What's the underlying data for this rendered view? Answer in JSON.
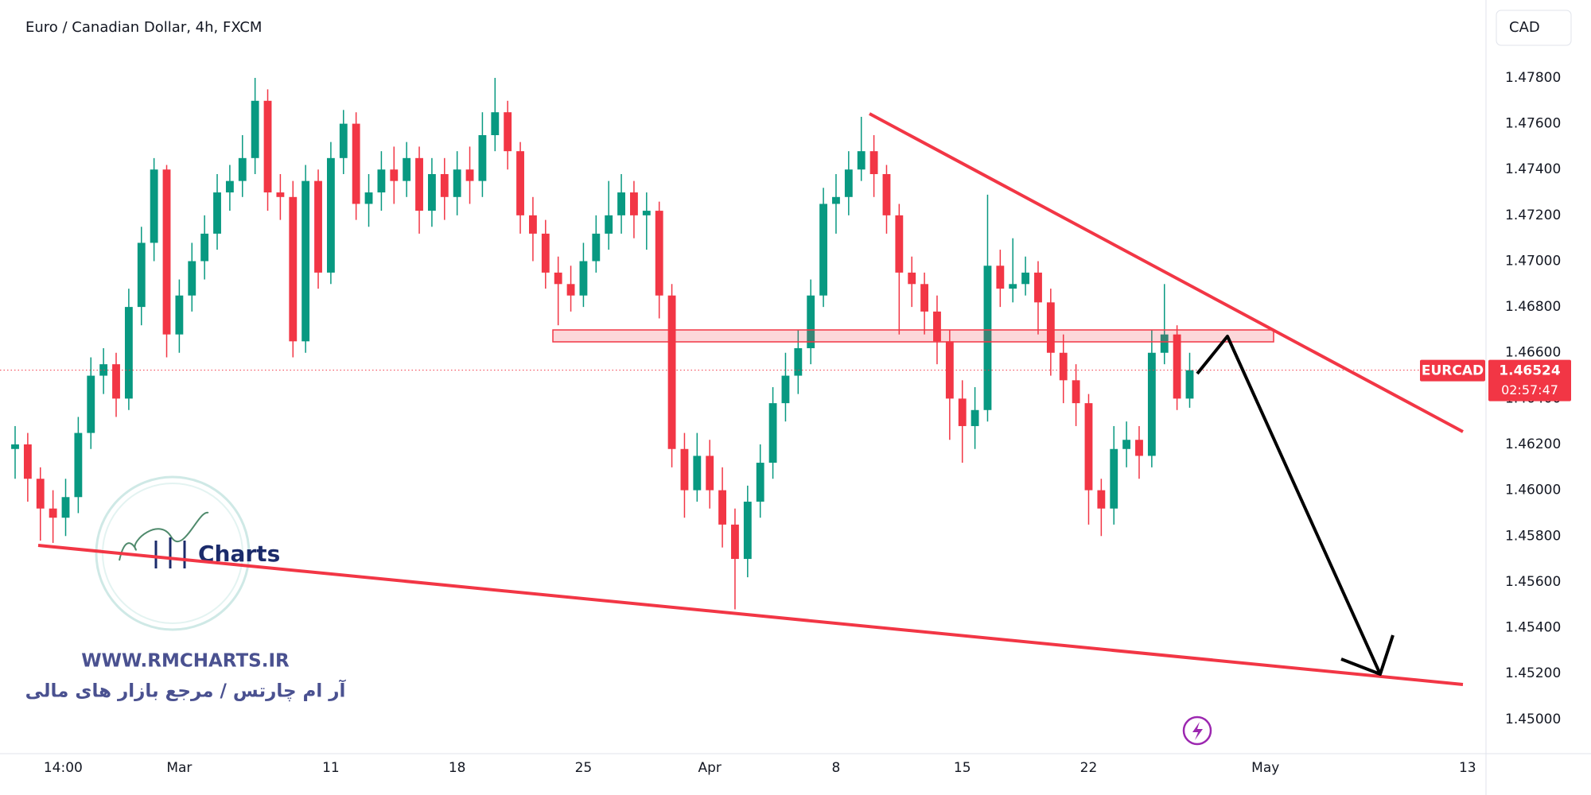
{
  "chart_data": {
    "type": "candlestick",
    "title": "Euro / Canadian Dollar, 4h, FXCM",
    "currency": "CAD",
    "symbol": "EURCAD",
    "last_price": 1.46524,
    "countdown": "02:57:47",
    "up_color": "#089981",
    "down_color": "#f23645",
    "grid": false,
    "xlim": [
      -2.5,
      55.7
    ],
    "ylim": [
      1.4485,
      1.4814
    ],
    "xticks": [
      {
        "value": -0.6,
        "label": "14:00"
      },
      {
        "value": 4,
        "label": "Mar"
      },
      {
        "value": 10,
        "label": "11"
      },
      {
        "value": 15,
        "label": "18"
      },
      {
        "value": 20,
        "label": "25"
      },
      {
        "value": 25,
        "label": "Apr"
      },
      {
        "value": 30,
        "label": "8"
      },
      {
        "value": 35,
        "label": "15"
      },
      {
        "value": 40,
        "label": "22"
      },
      {
        "value": 47,
        "label": "May"
      },
      {
        "value": 55,
        "label": "13"
      }
    ],
    "yticks": [
      {
        "value": 1.45,
        "label": "1.45000"
      },
      {
        "value": 1.452,
        "label": "1.45200"
      },
      {
        "value": 1.454,
        "label": "1.45400"
      },
      {
        "value": 1.456,
        "label": "1.45600"
      },
      {
        "value": 1.458,
        "label": "1.45800"
      },
      {
        "value": 1.46,
        "label": "1.46000"
      },
      {
        "value": 1.462,
        "label": "1.46200"
      },
      {
        "value": 1.464,
        "label": "1.46400"
      },
      {
        "value": 1.466,
        "label": "1.46600"
      },
      {
        "value": 1.468,
        "label": "1.46800"
      },
      {
        "value": 1.47,
        "label": "1.47000"
      },
      {
        "value": 1.472,
        "label": "1.47200"
      },
      {
        "value": 1.474,
        "label": "1.47400"
      },
      {
        "value": 1.476,
        "label": "1.47600"
      },
      {
        "value": 1.478,
        "label": "1.47800"
      }
    ],
    "x": [
      -2.5,
      -2,
      -1.5,
      -1,
      -0.5,
      0,
      0.5,
      1,
      1.5,
      2,
      2.5,
      3,
      3.5,
      4,
      4.5,
      5,
      5.5,
      6,
      6.5,
      7,
      7.5,
      8,
      8.5,
      9,
      9.5,
      10,
      10.5,
      11,
      11.5,
      12,
      12.5,
      13,
      13.5,
      14,
      14.5,
      15,
      15.5,
      16,
      16.5,
      17,
      17.5,
      18,
      18.5,
      19,
      19.5,
      20,
      20.5,
      21,
      21.5,
      22,
      22.5,
      23,
      23.5,
      24,
      24.5,
      25,
      25.5,
      26,
      26.5,
      27,
      27.5,
      28,
      28.5,
      29,
      29.5,
      30,
      30.5,
      31,
      31.5,
      32,
      32.5,
      33,
      33.5,
      34,
      34.5,
      35,
      35.5,
      36,
      36.5,
      37,
      37.5,
      38,
      38.5,
      39,
      39.5,
      40,
      40.5,
      41,
      41.5,
      42,
      42.5,
      43,
      43.5,
      44
    ],
    "open": [
      1.4618,
      1.462,
      1.4605,
      1.4592,
      1.4588,
      1.4597,
      1.4625,
      1.465,
      1.4655,
      1.464,
      1.468,
      1.4708,
      1.474,
      1.4668,
      1.4685,
      1.47,
      1.4712,
      1.473,
      1.4735,
      1.4745,
      1.477,
      1.473,
      1.4728,
      1.4665,
      1.4735,
      1.4695,
      1.4745,
      1.476,
      1.4725,
      1.473,
      1.474,
      1.4735,
      1.4745,
      1.4722,
      1.4738,
      1.4728,
      1.474,
      1.4735,
      1.4755,
      1.4765,
      1.4748,
      1.472,
      1.4712,
      1.4695,
      1.469,
      1.4685,
      1.47,
      1.4712,
      1.472,
      1.473,
      1.472,
      1.4722,
      1.4685,
      1.4618,
      1.46,
      1.4615,
      1.46,
      1.4585,
      1.457,
      1.4595,
      1.4612,
      1.4638,
      1.465,
      1.4662,
      1.4685,
      1.4725,
      1.4728,
      1.474,
      1.4748,
      1.4738,
      1.472,
      1.4695,
      1.469,
      1.4678,
      1.4665,
      1.464,
      1.4628,
      1.4635,
      1.4698,
      1.4688,
      1.469,
      1.4695,
      1.4682,
      1.466,
      1.4648,
      1.4638,
      1.46,
      1.4592,
      1.4618,
      1.4622,
      1.4615,
      1.466,
      1.4668,
      1.464
    ],
    "high": [
      1.4628,
      1.4625,
      1.461,
      1.46,
      1.4605,
      1.4632,
      1.4658,
      1.4662,
      1.466,
      1.4688,
      1.4715,
      1.4745,
      1.4742,
      1.4692,
      1.4708,
      1.472,
      1.4738,
      1.4742,
      1.4755,
      1.478,
      1.4775,
      1.4738,
      1.4735,
      1.4742,
      1.474,
      1.4752,
      1.4766,
      1.4765,
      1.4738,
      1.4748,
      1.475,
      1.4752,
      1.475,
      1.4745,
      1.4745,
      1.4748,
      1.475,
      1.4765,
      1.478,
      1.477,
      1.4752,
      1.4728,
      1.4718,
      1.4702,
      1.4698,
      1.4708,
      1.472,
      1.4735,
      1.4738,
      1.4735,
      1.473,
      1.4726,
      1.469,
      1.4625,
      1.4625,
      1.4622,
      1.461,
      1.4592,
      1.4602,
      1.462,
      1.4645,
      1.466,
      1.467,
      1.4692,
      1.4732,
      1.4738,
      1.4748,
      1.4763,
      1.4755,
      1.4742,
      1.4725,
      1.4702,
      1.4695,
      1.4685,
      1.467,
      1.4648,
      1.4645,
      1.4729,
      1.4705,
      1.471,
      1.4702,
      1.47,
      1.4688,
      1.4668,
      1.4655,
      1.4642,
      1.4605,
      1.4628,
      1.463,
      1.4628,
      1.467,
      1.469,
      1.4672,
      1.466
    ],
    "low": [
      1.4605,
      1.4595,
      1.4578,
      1.4577,
      1.458,
      1.459,
      1.4618,
      1.4642,
      1.4632,
      1.4635,
      1.4672,
      1.47,
      1.4658,
      1.466,
      1.4678,
      1.4692,
      1.4705,
      1.4722,
      1.4728,
      1.4738,
      1.4722,
      1.4718,
      1.4658,
      1.466,
      1.4688,
      1.469,
      1.4738,
      1.4718,
      1.4715,
      1.4722,
      1.4725,
      1.4728,
      1.4712,
      1.4715,
      1.4718,
      1.472,
      1.4725,
      1.4728,
      1.4748,
      1.474,
      1.4712,
      1.47,
      1.4688,
      1.4672,
      1.4678,
      1.468,
      1.4695,
      1.4705,
      1.4712,
      1.471,
      1.4705,
      1.4675,
      1.461,
      1.4588,
      1.4595,
      1.4592,
      1.4575,
      1.4548,
      1.4562,
      1.4588,
      1.4605,
      1.463,
      1.4642,
      1.4655,
      1.468,
      1.4712,
      1.472,
      1.4735,
      1.4728,
      1.4712,
      1.4668,
      1.468,
      1.4668,
      1.4655,
      1.4622,
      1.4612,
      1.4618,
      1.463,
      1.468,
      1.4682,
      1.4685,
      1.4668,
      1.465,
      1.4638,
      1.4628,
      1.4585,
      1.458,
      1.4585,
      1.461,
      1.4605,
      1.461,
      1.4655,
      1.4635,
      1.4636
    ],
    "close": [
      1.462,
      1.4605,
      1.4592,
      1.4588,
      1.4597,
      1.4625,
      1.465,
      1.4655,
      1.464,
      1.468,
      1.4708,
      1.474,
      1.4668,
      1.4685,
      1.47,
      1.4712,
      1.473,
      1.4735,
      1.4745,
      1.477,
      1.473,
      1.4728,
      1.4665,
      1.4735,
      1.4695,
      1.4745,
      1.476,
      1.4725,
      1.473,
      1.474,
      1.4735,
      1.4745,
      1.4722,
      1.4738,
      1.4728,
      1.474,
      1.4735,
      1.4755,
      1.4765,
      1.4748,
      1.472,
      1.4712,
      1.4695,
      1.469,
      1.4685,
      1.47,
      1.4712,
      1.472,
      1.473,
      1.472,
      1.4722,
      1.4685,
      1.4618,
      1.46,
      1.4615,
      1.46,
      1.4585,
      1.457,
      1.4595,
      1.4612,
      1.4638,
      1.465,
      1.4662,
      1.4685,
      1.4725,
      1.4728,
      1.474,
      1.4748,
      1.4738,
      1.472,
      1.4695,
      1.469,
      1.4678,
      1.4665,
      1.464,
      1.4628,
      1.4635,
      1.4698,
      1.4688,
      1.469,
      1.4695,
      1.4682,
      1.466,
      1.4648,
      1.4638,
      1.46,
      1.4592,
      1.4618,
      1.4622,
      1.4615,
      1.466,
      1.4668,
      1.464,
      1.46524
    ]
  },
  "watermark": {
    "logo_text": "Charts",
    "website": "WWW.RMCHARTS.IR",
    "tagline": "آر ام چارتس / مرجع بازار های مالی"
  }
}
